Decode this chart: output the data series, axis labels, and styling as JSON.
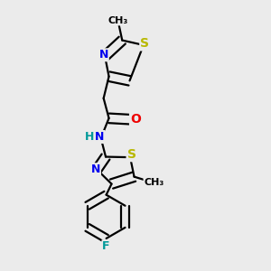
{
  "bg_color": "#ebebeb",
  "bond_color": "#000000",
  "bond_width": 1.6,
  "dbo": 0.018,
  "atom_colors": {
    "S": "#b8b800",
    "N": "#0000ee",
    "O": "#ee0000",
    "F": "#009999",
    "H": "#009999",
    "C": "#000000"
  },
  "font_size": 9
}
